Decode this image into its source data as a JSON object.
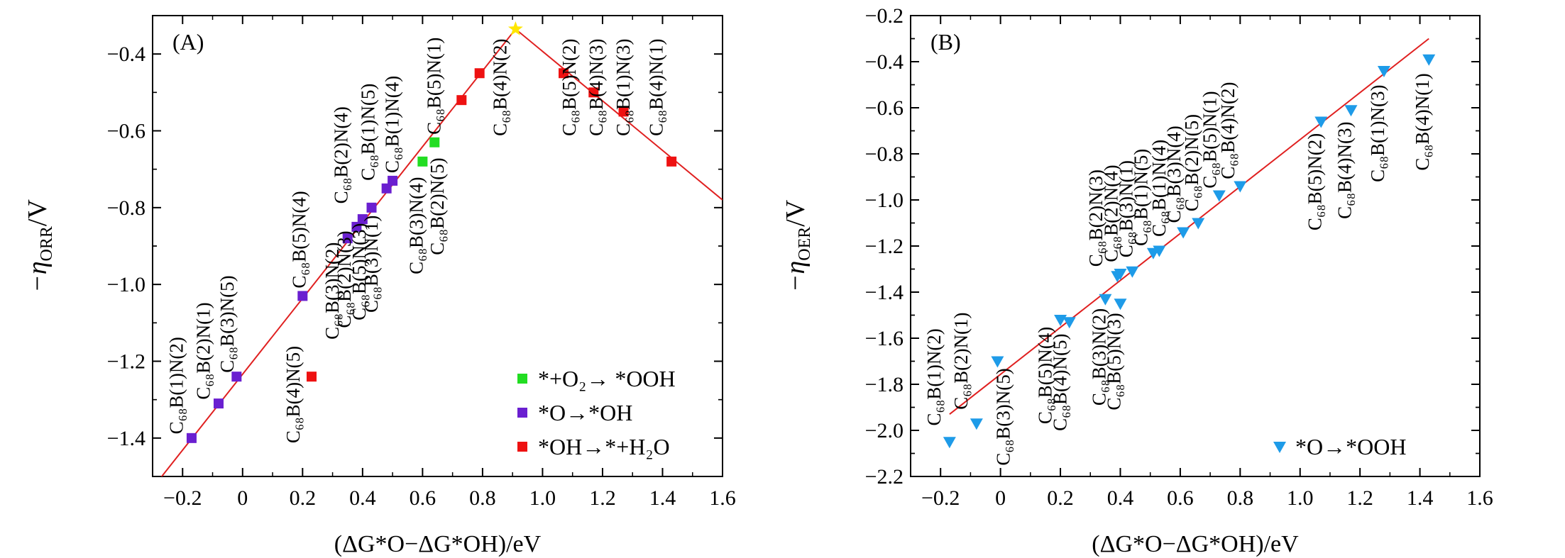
{
  "chart_data": [
    {
      "type": "scatter",
      "panel_label": "(A)",
      "ylabel": "−η",
      "ylabel_sub": "ORR",
      "ylabel_unit": "/V",
      "xlabel": "(ΔG*O−ΔG*OH)/eV",
      "xlim": [
        -0.3,
        1.6
      ],
      "ylim": [
        -1.5,
        -0.3
      ],
      "xticks": [
        -0.2,
        0,
        0.2,
        0.4,
        0.6,
        0.8,
        1.0,
        1.2,
        1.4,
        1.6
      ],
      "xtick_labels": [
        "−0.2",
        "0",
        "0.2",
        "0.4",
        "0.6",
        "0.8",
        "1.0",
        "1.2",
        "1.4",
        "1.6"
      ],
      "yticks": [
        -1.4,
        -1.2,
        -1.0,
        -0.8,
        -0.6,
        -0.4
      ],
      "ytick_labels": [
        "−1.4",
        "−1.2",
        "−1.0",
        "−0.8",
        "−0.6",
        "−0.4"
      ],
      "volcano_line": [
        [
          -0.3,
          -1.53
        ],
        [
          0.91,
          -0.335
        ],
        [
          1.6,
          -0.78
        ]
      ],
      "apex_point": {
        "x": 0.91,
        "y": -0.335,
        "color": "#ffe600"
      },
      "series": [
        {
          "name": "*+O₂→ *OOH",
          "marker": "square",
          "color": "#22dd22",
          "points": [
            [
              0.6,
              -0.68
            ],
            [
              0.64,
              -0.63
            ]
          ]
        },
        {
          "name": "*O→*OH",
          "marker": "square",
          "color": "#6a1fd0",
          "points": [
            [
              -0.17,
              -1.4
            ],
            [
              -0.08,
              -1.31
            ],
            [
              -0.02,
              -1.24
            ],
            [
              0.2,
              -1.03
            ],
            [
              0.35,
              -0.88
            ],
            [
              0.38,
              -0.85
            ],
            [
              0.4,
              -0.83
            ],
            [
              0.43,
              -0.8
            ],
            [
              0.48,
              -0.75
            ],
            [
              0.5,
              -0.73
            ]
          ]
        },
        {
          "name": "*OH→*+H₂O",
          "marker": "square",
          "color": "#ee1111",
          "points": [
            [
              0.23,
              -1.24
            ],
            [
              0.73,
              -0.52
            ],
            [
              0.79,
              -0.45
            ],
            [
              1.07,
              -0.45
            ],
            [
              1.17,
              -0.5
            ],
            [
              1.27,
              -0.55
            ],
            [
              1.43,
              -0.68
            ]
          ]
        }
      ],
      "annotations": [
        {
          "text": "C₆₈B(1)N(2)",
          "x": -0.2,
          "y": -1.39,
          "dir": "up"
        },
        {
          "text": "C₆₈B(2)N(1)",
          "x": -0.11,
          "y": -1.3,
          "dir": "up"
        },
        {
          "text": "C₆₈B(3)N(5)",
          "x": -0.03,
          "y": -1.23,
          "dir": "up"
        },
        {
          "text": "C₆₈B(4)N(5)",
          "x": 0.19,
          "y": -1.16,
          "dir": "down"
        },
        {
          "text": "C₆₈B(5)N(4)",
          "x": 0.21,
          "y": -1.01,
          "dir": "up"
        },
        {
          "text": "C₆₈B(3)N(2)",
          "x": 0.32,
          "y": -0.89,
          "dir": "down"
        },
        {
          "text": "C₆₈B(2)N(3)",
          "x": 0.36,
          "y": -0.86,
          "dir": "down"
        },
        {
          "text": "C₆₈B(5)N(3)",
          "x": 0.41,
          "y": -0.84,
          "dir": "down"
        },
        {
          "text": "C₆₈B(3)N(1)",
          "x": 0.45,
          "y": -0.82,
          "dir": "down"
        },
        {
          "text": "C₆₈B(2)N(4)",
          "x": 0.35,
          "y": -0.79,
          "dir": "up"
        },
        {
          "text": "C₆₈B(1)N(5)",
          "x": 0.44,
          "y": -0.73,
          "dir": "up"
        },
        {
          "text": "C₆₈B(1)N(4)",
          "x": 0.52,
          "y": -0.71,
          "dir": "up"
        },
        {
          "text": "C₆₈B(3)N(4)",
          "x": 0.6,
          "y": -0.72,
          "dir": "down"
        },
        {
          "text": "C₆₈B(2)N(5)",
          "x": 0.67,
          "y": -0.67,
          "dir": "down"
        },
        {
          "text": "C₆₈B(5)N(1)",
          "x": 0.66,
          "y": -0.61,
          "dir": "up"
        },
        {
          "text": "C₆₈B(4)N(2)",
          "x": 0.88,
          "y": -0.36,
          "dir": "down"
        },
        {
          "text": "C₆₈B(5)N(2)",
          "x": 1.11,
          "y": -0.36,
          "dir": "down"
        },
        {
          "text": "C₆₈B(4)N(3)",
          "x": 1.2,
          "y": -0.36,
          "dir": "down"
        },
        {
          "text": "C₆₈B(1)N(3)",
          "x": 1.29,
          "y": -0.36,
          "dir": "down"
        },
        {
          "text": "C₆₈B(4)N(1)",
          "x": 1.4,
          "y": -0.36,
          "dir": "down"
        }
      ],
      "legend_position": "bottom-right"
    },
    {
      "type": "scatter",
      "panel_label": "(B)",
      "ylabel": "−η",
      "ylabel_sub": "OER",
      "ylabel_unit": "/V",
      "xlabel": "(ΔG*O−ΔG*OH)/eV",
      "xlim": [
        -0.3,
        1.6
      ],
      "ylim": [
        -2.2,
        -0.2
      ],
      "xticks": [
        -0.2,
        0,
        0.2,
        0.4,
        0.6,
        0.8,
        1.0,
        1.2,
        1.4,
        1.6
      ],
      "xtick_labels": [
        "−0.2",
        "0",
        "0.2",
        "0.4",
        "0.6",
        "0.8",
        "1.0",
        "1.2",
        "1.4",
        "1.6"
      ],
      "yticks": [
        -2.2,
        -2.0,
        -1.8,
        -1.6,
        -1.4,
        -1.2,
        -1.0,
        -0.8,
        -0.6,
        -0.4,
        -0.2
      ],
      "ytick_labels": [
        "−2.2",
        "−2.0",
        "−1.8",
        "−1.6",
        "−1.4",
        "−1.2",
        "−1.0",
        "−0.8",
        "−0.6",
        "−0.4",
        "−0.2"
      ],
      "fit_line": [
        [
          -0.17,
          -1.93
        ],
        [
          1.43,
          -0.3
        ]
      ],
      "series": [
        {
          "name": "*O→*OOH",
          "marker": "triangle-down",
          "color": "#1e9be8",
          "points": [
            [
              -0.17,
              -2.05
            ],
            [
              -0.08,
              -1.97
            ],
            [
              -0.01,
              -1.7
            ],
            [
              0.2,
              -1.52
            ],
            [
              0.23,
              -1.53
            ],
            [
              0.35,
              -1.43
            ],
            [
              0.4,
              -1.45
            ],
            [
              0.39,
              -1.33
            ],
            [
              0.4,
              -1.32
            ],
            [
              0.44,
              -1.31
            ],
            [
              0.51,
              -1.23
            ],
            [
              0.53,
              -1.22
            ],
            [
              0.61,
              -1.14
            ],
            [
              0.66,
              -1.1
            ],
            [
              0.73,
              -0.98
            ],
            [
              0.8,
              -0.94
            ],
            [
              1.07,
              -0.66
            ],
            [
              1.17,
              -0.61
            ],
            [
              1.28,
              -0.44
            ],
            [
              1.43,
              -0.39
            ]
          ]
        }
      ],
      "annotations": [
        {
          "text": "C₆₈B(1)N(2)",
          "x": -0.2,
          "y": -1.98,
          "dir": "up"
        },
        {
          "text": "C₆₈B(2)N(1)",
          "x": -0.11,
          "y": -1.91,
          "dir": "up"
        },
        {
          "text": "C₆₈B(3)N(5)",
          "x": 0.03,
          "y": -1.73,
          "dir": "down"
        },
        {
          "text": "C₆₈B(5)N(4)",
          "x": 0.17,
          "y": -1.55,
          "dir": "down"
        },
        {
          "text": "C₆₈B(4)N(5)",
          "x": 0.22,
          "y": -1.58,
          "dir": "down"
        },
        {
          "text": "C₆₈B(3)N(2)",
          "x": 0.35,
          "y": -1.47,
          "dir": "down"
        },
        {
          "text": "C₆₈B(5)N(3)",
          "x": 0.4,
          "y": -1.49,
          "dir": "down"
        },
        {
          "text": "C₆₈B(2)N(3)",
          "x": 0.34,
          "y": -1.29,
          "dir": "up"
        },
        {
          "text": "C₆₈B(2)N(4)",
          "x": 0.39,
          "y": -1.27,
          "dir": "up"
        },
        {
          "text": "C₆₈B(3)N(1)",
          "x": 0.44,
          "y": -1.25,
          "dir": "up"
        },
        {
          "text": "C₆₈B(1)N(5)",
          "x": 0.49,
          "y": -1.2,
          "dir": "up"
        },
        {
          "text": "C₆₈B(1)N(4)",
          "x": 0.55,
          "y": -1.16,
          "dir": "up"
        },
        {
          "text": "C₆₈B(3)N(4)",
          "x": 0.6,
          "y": -1.1,
          "dir": "up"
        },
        {
          "text": "C₆₈B(2)N(5)",
          "x": 0.66,
          "y": -1.05,
          "dir": "up"
        },
        {
          "text": "C₆₈B(5)N(1)",
          "x": 0.72,
          "y": -0.95,
          "dir": "up"
        },
        {
          "text": "C₆₈B(4)N(2)",
          "x": 0.78,
          "y": -0.91,
          "dir": "up"
        },
        {
          "text": "C₆₈B(5)N(2)",
          "x": 1.07,
          "y": -0.71,
          "dir": "down"
        },
        {
          "text": "C₆₈B(4)N(3)",
          "x": 1.17,
          "y": -0.66,
          "dir": "down"
        },
        {
          "text": "C₆₈B(1)N(3)",
          "x": 1.28,
          "y": -0.5,
          "dir": "down"
        },
        {
          "text": "C₆₈B(4)N(1)",
          "x": 1.43,
          "y": -0.45,
          "dir": "down"
        }
      ],
      "legend_position": "bottom-right"
    }
  ]
}
